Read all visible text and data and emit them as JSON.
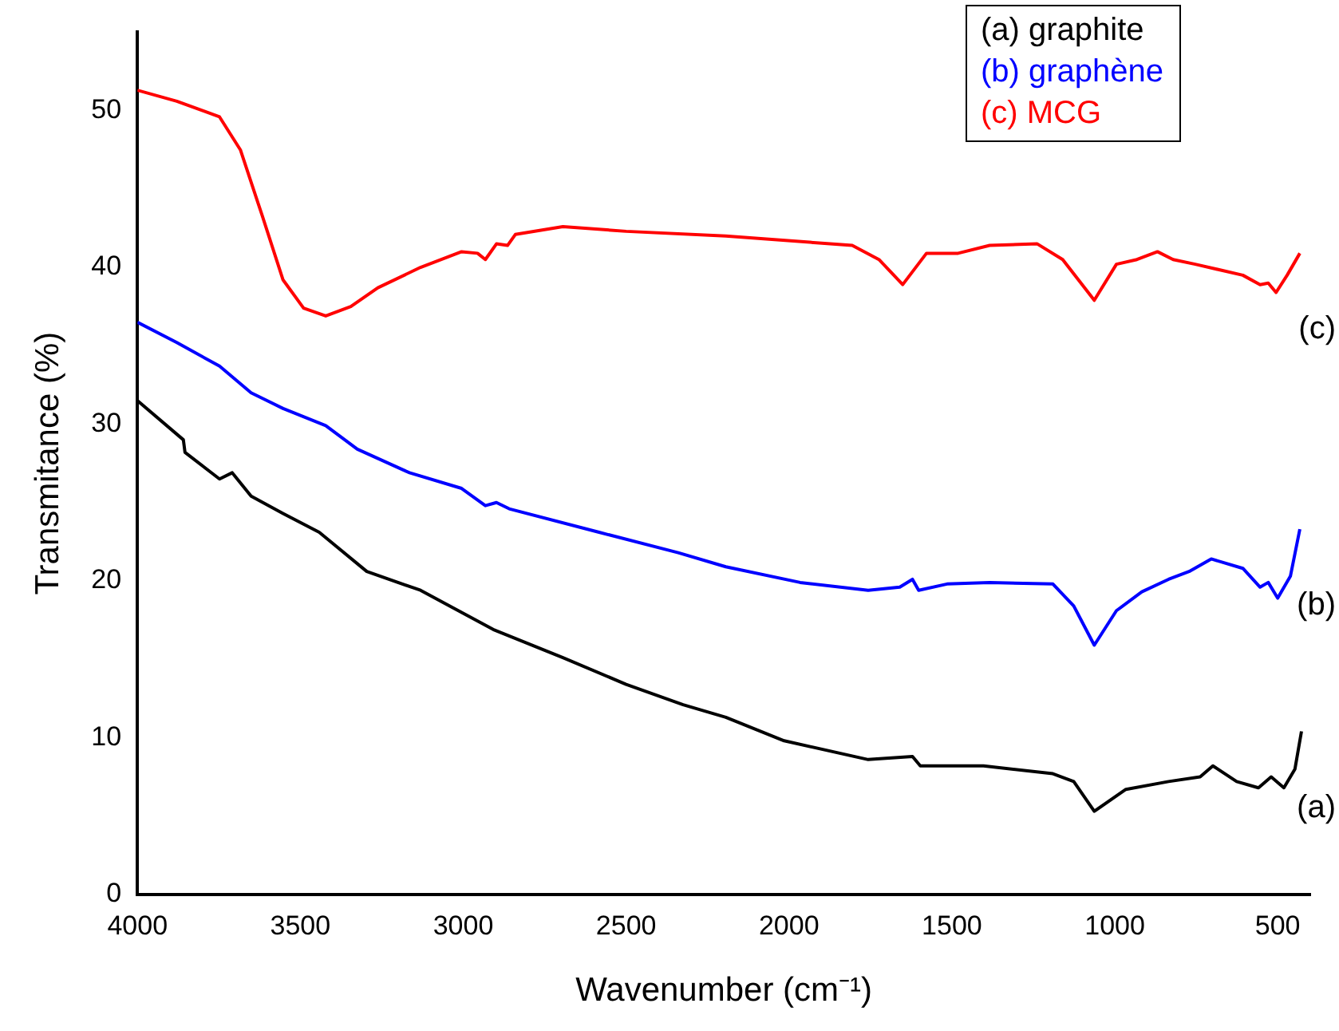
{
  "chart_data": {
    "type": "line",
    "xlabel": "Wavenumber (cm⁻¹)",
    "ylabel": "Transmitance (%)",
    "xlim": [
      4000,
      400
    ],
    "xticks": [
      4000,
      3500,
      3000,
      2500,
      2000,
      1500,
      1000,
      500
    ],
    "ylim": [
      0,
      55
    ],
    "yticks": [
      0,
      10,
      20,
      30,
      40,
      50
    ],
    "grid": false,
    "legend": "top right",
    "marker": "none",
    "line_style": "solid",
    "annotations": [
      "(c)",
      "(b)",
      "(a)"
    ],
    "series": [
      {
        "name": "(a) graphite",
        "color": "#000000",
        "x": [
          4000,
          3859,
          3854,
          3748,
          3709,
          3651,
          3553,
          3442,
          3296,
          3131,
          2908,
          2694,
          2500,
          2325,
          2194,
          2015,
          1757,
          1621,
          1597,
          1403,
          1190,
          1126,
          1063,
          966,
          835,
          738,
          699,
          626,
          559,
          520,
          481,
          447,
          427
        ],
        "values": [
          31.5,
          29.0,
          28.2,
          26.5,
          26.9,
          25.4,
          24.3,
          23.1,
          20.6,
          19.4,
          16.9,
          15.1,
          13.4,
          12.1,
          11.3,
          9.8,
          8.6,
          8.8,
          8.2,
          8.2,
          7.7,
          7.2,
          5.3,
          6.7,
          7.2,
          7.5,
          8.2,
          7.2,
          6.8,
          7.5,
          6.8,
          8.0,
          10.4
        ]
      },
      {
        "name": "(b) graphène",
        "color": "#0000ff",
        "x": [
          4000,
          3879,
          3748,
          3651,
          3553,
          3422,
          3325,
          3165,
          3005,
          2932,
          2898,
          2859,
          2583,
          2340,
          2194,
          1966,
          1757,
          1660,
          1621,
          1602,
          1515,
          1384,
          1190,
          1126,
          1063,
          995,
          917,
          835,
          772,
          704,
          607,
          554,
          529,
          500,
          461,
          432
        ],
        "values": [
          36.5,
          35.2,
          33.7,
          32.0,
          31.0,
          29.9,
          28.4,
          26.9,
          25.9,
          24.8,
          25.0,
          24.6,
          23.1,
          21.8,
          20.9,
          19.9,
          19.4,
          19.6,
          20.1,
          19.4,
          19.8,
          19.9,
          19.8,
          18.4,
          15.9,
          18.1,
          19.3,
          20.1,
          20.6,
          21.4,
          20.8,
          19.6,
          19.9,
          18.9,
          20.3,
          23.3
        ]
      },
      {
        "name": "(c) MCG",
        "color": "#ff0000",
        "x": [
          4000,
          3879,
          3748,
          3684,
          3617,
          3553,
          3490,
          3422,
          3345,
          3262,
          3131,
          3005,
          2956,
          2932,
          2898,
          2864,
          2840,
          2694,
          2500,
          2194,
          1806,
          1724,
          1651,
          1578,
          1481,
          1384,
          1238,
          1160,
          1063,
          995,
          932,
          869,
          821,
          753,
          607,
          554,
          529,
          505,
          471,
          432
        ],
        "values": [
          51.3,
          50.6,
          49.6,
          47.5,
          43.3,
          39.2,
          37.4,
          36.9,
          37.5,
          38.7,
          40.0,
          41.0,
          40.9,
          40.5,
          41.5,
          41.4,
          42.1,
          42.6,
          42.3,
          42.0,
          41.4,
          40.5,
          38.9,
          40.9,
          40.9,
          41.4,
          41.5,
          40.5,
          37.9,
          40.2,
          40.5,
          41.0,
          40.5,
          40.2,
          39.5,
          38.9,
          39.0,
          38.4,
          39.5,
          40.9
        ]
      }
    ]
  }
}
